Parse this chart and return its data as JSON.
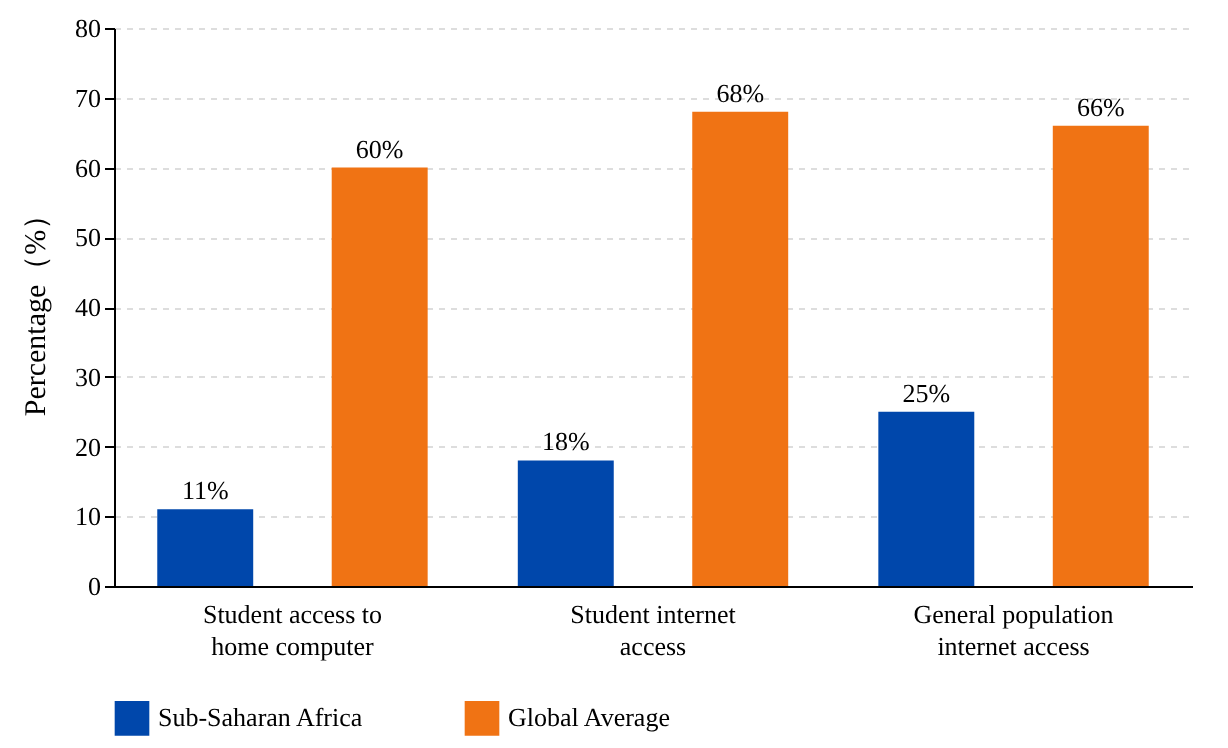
{
  "chart_data": {
    "type": "bar",
    "ylabel": "Percentage（%）",
    "categories": [
      "Student access to\nhome computer",
      "Student internet\naccess",
      "General population\ninternet access"
    ],
    "series": [
      {
        "name": "Sub-Saharan Africa",
        "color": "#0047ab",
        "values": [
          11,
          18,
          25
        ],
        "value_labels": [
          "11%",
          "18%",
          "25%"
        ]
      },
      {
        "name": "Global Average",
        "color": "#f07314",
        "values": [
          60,
          68,
          66
        ],
        "value_labels": [
          "60%",
          "68%",
          "66%"
        ]
      }
    ],
    "ylim": [
      0,
      80
    ],
    "yticks": [
      0,
      10,
      20,
      30,
      40,
      50,
      60,
      70,
      80
    ],
    "grid": "y",
    "legend": "bottom"
  }
}
